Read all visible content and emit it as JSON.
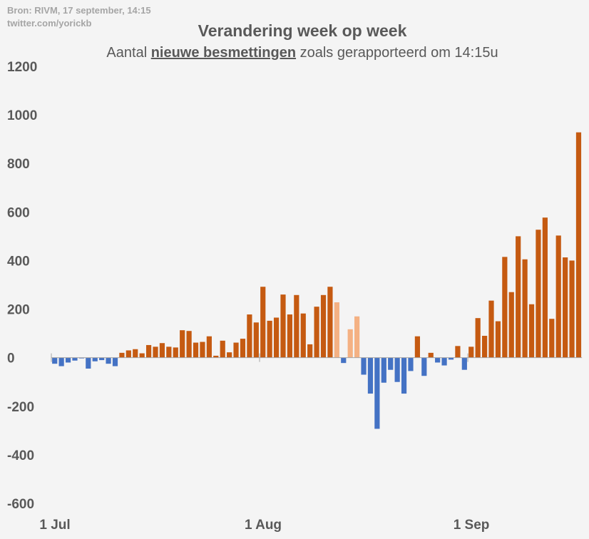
{
  "source": {
    "line1": "Bron: RIVM, 17 september, 14:15",
    "line2": "twitter.com/yorickb"
  },
  "chart_data": {
    "type": "bar",
    "title": "Verandering week op week",
    "subtitle": {
      "prefix": "Aantal ",
      "highlight": "nieuwe besmettingen",
      "suffix": " zoals gerapporteerd om 14:15u"
    },
    "xlabel": "",
    "ylabel": "",
    "ylim": [
      -600,
      1200
    ],
    "yticks": [
      1200,
      1000,
      800,
      600,
      400,
      200,
      0,
      -200,
      -400,
      -600
    ],
    "xtick_labels": [
      {
        "label": "1 Jul",
        "index": 0
      },
      {
        "label": "1 Aug",
        "index": 31
      },
      {
        "label": "1 Sep",
        "index": 62
      }
    ],
    "colors": {
      "positive": "#c55a11",
      "negative": "#4472c4",
      "highlight": "#f4b183"
    },
    "bars": [
      {
        "date": "2020-07-01",
        "value": -25,
        "color": "negative"
      },
      {
        "date": "2020-07-02",
        "value": -35,
        "color": "negative"
      },
      {
        "date": "2020-07-03",
        "value": -20,
        "color": "negative"
      },
      {
        "date": "2020-07-04",
        "value": -12,
        "color": "negative"
      },
      {
        "date": "2020-07-05",
        "value": -3,
        "color": "negative"
      },
      {
        "date": "2020-07-06",
        "value": -45,
        "color": "negative"
      },
      {
        "date": "2020-07-07",
        "value": -15,
        "color": "negative"
      },
      {
        "date": "2020-07-08",
        "value": -10,
        "color": "negative"
      },
      {
        "date": "2020-07-09",
        "value": -25,
        "color": "negative"
      },
      {
        "date": "2020-07-10",
        "value": -35,
        "color": "negative"
      },
      {
        "date": "2020-07-11",
        "value": 20,
        "color": "positive"
      },
      {
        "date": "2020-07-12",
        "value": 30,
        "color": "positive"
      },
      {
        "date": "2020-07-13",
        "value": 35,
        "color": "positive"
      },
      {
        "date": "2020-07-14",
        "value": 18,
        "color": "positive"
      },
      {
        "date": "2020-07-15",
        "value": 52,
        "color": "positive"
      },
      {
        "date": "2020-07-16",
        "value": 45,
        "color": "positive"
      },
      {
        "date": "2020-07-17",
        "value": 60,
        "color": "positive"
      },
      {
        "date": "2020-07-18",
        "value": 45,
        "color": "positive"
      },
      {
        "date": "2020-07-19",
        "value": 42,
        "color": "positive"
      },
      {
        "date": "2020-07-20",
        "value": 113,
        "color": "positive"
      },
      {
        "date": "2020-07-21",
        "value": 110,
        "color": "positive"
      },
      {
        "date": "2020-07-22",
        "value": 62,
        "color": "positive"
      },
      {
        "date": "2020-07-23",
        "value": 65,
        "color": "positive"
      },
      {
        "date": "2020-07-24",
        "value": 88,
        "color": "positive"
      },
      {
        "date": "2020-07-25",
        "value": 8,
        "color": "positive"
      },
      {
        "date": "2020-07-26",
        "value": 70,
        "color": "positive"
      },
      {
        "date": "2020-07-27",
        "value": 22,
        "color": "positive"
      },
      {
        "date": "2020-07-28",
        "value": 62,
        "color": "positive"
      },
      {
        "date": "2020-07-29",
        "value": 78,
        "color": "positive"
      },
      {
        "date": "2020-07-30",
        "value": 178,
        "color": "positive"
      },
      {
        "date": "2020-07-31",
        "value": 145,
        "color": "positive"
      },
      {
        "date": "2020-08-01",
        "value": 292,
        "color": "positive"
      },
      {
        "date": "2020-08-02",
        "value": 152,
        "color": "positive"
      },
      {
        "date": "2020-08-03",
        "value": 165,
        "color": "positive"
      },
      {
        "date": "2020-08-04",
        "value": 260,
        "color": "positive"
      },
      {
        "date": "2020-08-05",
        "value": 178,
        "color": "positive"
      },
      {
        "date": "2020-08-06",
        "value": 258,
        "color": "positive"
      },
      {
        "date": "2020-08-07",
        "value": 182,
        "color": "positive"
      },
      {
        "date": "2020-08-08",
        "value": 55,
        "color": "positive"
      },
      {
        "date": "2020-08-09",
        "value": 210,
        "color": "positive"
      },
      {
        "date": "2020-08-10",
        "value": 258,
        "color": "positive"
      },
      {
        "date": "2020-08-11",
        "value": 292,
        "color": "positive"
      },
      {
        "date": "2020-08-12",
        "value": 228,
        "color": "highlight"
      },
      {
        "date": "2020-08-13",
        "value": -22,
        "color": "negative"
      },
      {
        "date": "2020-08-14",
        "value": 117,
        "color": "highlight"
      },
      {
        "date": "2020-08-15",
        "value": 170,
        "color": "highlight"
      },
      {
        "date": "2020-08-16",
        "value": -70,
        "color": "negative"
      },
      {
        "date": "2020-08-17",
        "value": -148,
        "color": "negative"
      },
      {
        "date": "2020-08-18",
        "value": -293,
        "color": "negative"
      },
      {
        "date": "2020-08-19",
        "value": -103,
        "color": "negative"
      },
      {
        "date": "2020-08-20",
        "value": -50,
        "color": "negative"
      },
      {
        "date": "2020-08-21",
        "value": -100,
        "color": "negative"
      },
      {
        "date": "2020-08-22",
        "value": -148,
        "color": "negative"
      },
      {
        "date": "2020-08-23",
        "value": -55,
        "color": "negative"
      },
      {
        "date": "2020-08-24",
        "value": 88,
        "color": "positive"
      },
      {
        "date": "2020-08-25",
        "value": -75,
        "color": "negative"
      },
      {
        "date": "2020-08-26",
        "value": 20,
        "color": "positive"
      },
      {
        "date": "2020-08-27",
        "value": -20,
        "color": "negative"
      },
      {
        "date": "2020-08-28",
        "value": -32,
        "color": "negative"
      },
      {
        "date": "2020-08-29",
        "value": -8,
        "color": "negative"
      },
      {
        "date": "2020-08-30",
        "value": 48,
        "color": "positive"
      },
      {
        "date": "2020-08-31",
        "value": -50,
        "color": "negative"
      },
      {
        "date": "2020-09-01",
        "value": 45,
        "color": "positive"
      },
      {
        "date": "2020-09-02",
        "value": 163,
        "color": "positive"
      },
      {
        "date": "2020-09-03",
        "value": 90,
        "color": "positive"
      },
      {
        "date": "2020-09-04",
        "value": 235,
        "color": "positive"
      },
      {
        "date": "2020-09-05",
        "value": 150,
        "color": "positive"
      },
      {
        "date": "2020-09-06",
        "value": 415,
        "color": "positive"
      },
      {
        "date": "2020-09-07",
        "value": 270,
        "color": "positive"
      },
      {
        "date": "2020-09-08",
        "value": 500,
        "color": "positive"
      },
      {
        "date": "2020-09-09",
        "value": 405,
        "color": "positive"
      },
      {
        "date": "2020-09-10",
        "value": 220,
        "color": "positive"
      },
      {
        "date": "2020-09-11",
        "value": 527,
        "color": "positive"
      },
      {
        "date": "2020-09-12",
        "value": 577,
        "color": "positive"
      },
      {
        "date": "2020-09-13",
        "value": 160,
        "color": "positive"
      },
      {
        "date": "2020-09-14",
        "value": 503,
        "color": "positive"
      },
      {
        "date": "2020-09-15",
        "value": 413,
        "color": "positive"
      },
      {
        "date": "2020-09-16",
        "value": 400,
        "color": "positive"
      },
      {
        "date": "2020-09-17",
        "value": 928,
        "color": "positive"
      }
    ]
  }
}
